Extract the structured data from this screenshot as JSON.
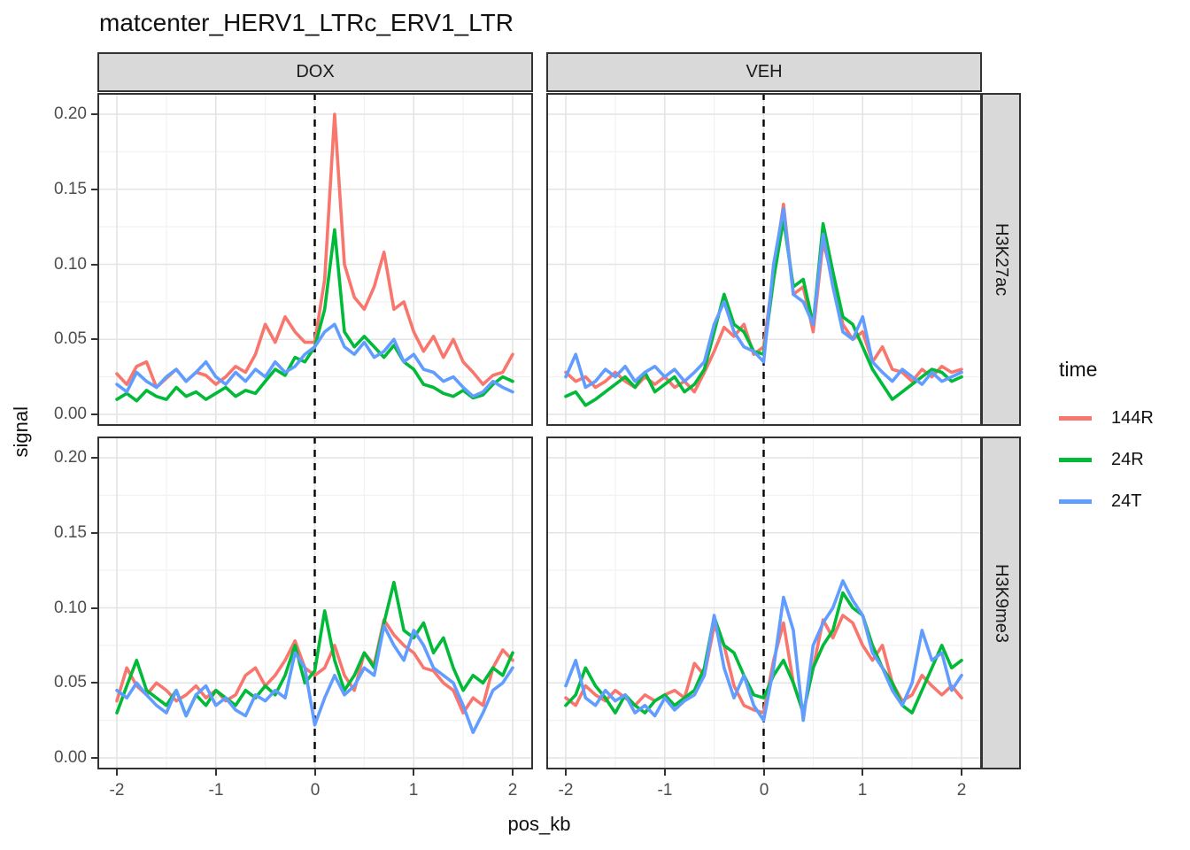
{
  "chart_data": {
    "type": "line",
    "title": "matcenter_HERV1_LTRc_ERV1_LTR",
    "xlabel": "pos_kb",
    "ylabel": "signal",
    "legend_title": "time",
    "legend_position": "right",
    "grid": "on",
    "facet_cols": [
      "DOX",
      "VEH"
    ],
    "facet_rows": [
      "H3K27ac",
      "H3K9me3"
    ],
    "x": {
      "start": -2,
      "step": 0.1,
      "end": 2
    },
    "xlim": [
      -2.2,
      2.2
    ],
    "ylim": [
      0,
      0.21
    ],
    "xticks": {
      "values": [
        -2,
        -1,
        0,
        1,
        2
      ],
      "labels": [
        "-2",
        "-1",
        "0",
        "1",
        "2"
      ]
    },
    "yticks": {
      "values": [
        0,
        0.05,
        0.1,
        0.15,
        0.2
      ],
      "labels": [
        "0.00",
        "0.05",
        "0.10",
        "0.15",
        "0.20"
      ]
    },
    "vline_x": 0,
    "series": [
      {
        "name": "144R",
        "color": "#F8766D"
      },
      {
        "name": "24R",
        "color": "#00BA38"
      },
      {
        "name": "24T",
        "color": "#619CFF"
      }
    ],
    "panels": [
      {
        "col": "DOX",
        "row": "H3K27ac",
        "values": {
          "144R": [
            0.027,
            0.02,
            0.032,
            0.035,
            0.018,
            0.024,
            0.03,
            0.022,
            0.028,
            0.026,
            0.02,
            0.025,
            0.032,
            0.028,
            0.04,
            0.06,
            0.048,
            0.065,
            0.055,
            0.048,
            0.048,
            0.09,
            0.2,
            0.1,
            0.078,
            0.07,
            0.085,
            0.108,
            0.07,
            0.075,
            0.055,
            0.042,
            0.052,
            0.038,
            0.05,
            0.035,
            0.028,
            0.02,
            0.026,
            0.028,
            0.04
          ],
          "24R": [
            0.01,
            0.014,
            0.009,
            0.016,
            0.012,
            0.01,
            0.018,
            0.012,
            0.015,
            0.01,
            0.014,
            0.018,
            0.012,
            0.016,
            0.014,
            0.022,
            0.03,
            0.026,
            0.038,
            0.035,
            0.045,
            0.07,
            0.123,
            0.055,
            0.045,
            0.052,
            0.045,
            0.038,
            0.046,
            0.035,
            0.03,
            0.02,
            0.018,
            0.014,
            0.012,
            0.016,
            0.011,
            0.013,
            0.02,
            0.025,
            0.022
          ],
          "24T": [
            0.02,
            0.015,
            0.028,
            0.022,
            0.018,
            0.025,
            0.03,
            0.022,
            0.028,
            0.035,
            0.025,
            0.02,
            0.028,
            0.022,
            0.03,
            0.025,
            0.035,
            0.028,
            0.032,
            0.04,
            0.045,
            0.055,
            0.06,
            0.045,
            0.04,
            0.048,
            0.038,
            0.042,
            0.05,
            0.035,
            0.04,
            0.03,
            0.028,
            0.022,
            0.025,
            0.018,
            0.012,
            0.015,
            0.022,
            0.018,
            0.015
          ]
        }
      },
      {
        "col": "VEH",
        "row": "H3K27ac",
        "values": {
          "144R": [
            0.028,
            0.022,
            0.025,
            0.018,
            0.022,
            0.028,
            0.022,
            0.018,
            0.025,
            0.02,
            0.025,
            0.018,
            0.022,
            0.015,
            0.028,
            0.042,
            0.058,
            0.052,
            0.06,
            0.04,
            0.045,
            0.095,
            0.14,
            0.08,
            0.085,
            0.055,
            0.115,
            0.09,
            0.06,
            0.05,
            0.055,
            0.035,
            0.045,
            0.03,
            0.028,
            0.022,
            0.03,
            0.025,
            0.032,
            0.028,
            0.03
          ],
          "24R": [
            0.012,
            0.015,
            0.006,
            0.01,
            0.015,
            0.02,
            0.025,
            0.018,
            0.028,
            0.015,
            0.02,
            0.025,
            0.015,
            0.02,
            0.03,
            0.055,
            0.08,
            0.06,
            0.055,
            0.042,
            0.04,
            0.09,
            0.13,
            0.085,
            0.09,
            0.06,
            0.127,
            0.095,
            0.065,
            0.06,
            0.045,
            0.03,
            0.02,
            0.01,
            0.015,
            0.02,
            0.025,
            0.03,
            0.028,
            0.022,
            0.025
          ],
          "24T": [
            0.025,
            0.04,
            0.018,
            0.022,
            0.03,
            0.025,
            0.032,
            0.022,
            0.028,
            0.032,
            0.025,
            0.03,
            0.022,
            0.028,
            0.035,
            0.06,
            0.075,
            0.055,
            0.045,
            0.042,
            0.035,
            0.1,
            0.137,
            0.08,
            0.075,
            0.06,
            0.12,
            0.085,
            0.055,
            0.05,
            0.065,
            0.035,
            0.028,
            0.022,
            0.03,
            0.025,
            0.02,
            0.028,
            0.022,
            0.025,
            0.028
          ]
        }
      },
      {
        "col": "DOX",
        "row": "H3K9me3",
        "values": {
          "144R": [
            0.038,
            0.06,
            0.048,
            0.042,
            0.05,
            0.045,
            0.038,
            0.042,
            0.048,
            0.04,
            0.045,
            0.038,
            0.042,
            0.055,
            0.06,
            0.048,
            0.055,
            0.065,
            0.078,
            0.06,
            0.055,
            0.06,
            0.075,
            0.055,
            0.045,
            0.07,
            0.062,
            0.092,
            0.082,
            0.075,
            0.07,
            0.06,
            0.058,
            0.05,
            0.045,
            0.03,
            0.04,
            0.035,
            0.06,
            0.072,
            0.065
          ],
          "24R": [
            0.03,
            0.048,
            0.065,
            0.045,
            0.04,
            0.035,
            0.045,
            0.028,
            0.042,
            0.035,
            0.045,
            0.04,
            0.035,
            0.045,
            0.04,
            0.048,
            0.042,
            0.055,
            0.075,
            0.05,
            0.058,
            0.098,
            0.065,
            0.045,
            0.055,
            0.07,
            0.06,
            0.09,
            0.117,
            0.085,
            0.08,
            0.09,
            0.07,
            0.08,
            0.06,
            0.045,
            0.055,
            0.05,
            0.06,
            0.055,
            0.07
          ],
          "24T": [
            0.045,
            0.04,
            0.05,
            0.042,
            0.035,
            0.03,
            0.045,
            0.028,
            0.042,
            0.048,
            0.035,
            0.04,
            0.032,
            0.028,
            0.042,
            0.038,
            0.045,
            0.04,
            0.07,
            0.06,
            0.022,
            0.04,
            0.055,
            0.042,
            0.048,
            0.06,
            0.055,
            0.088,
            0.075,
            0.065,
            0.085,
            0.075,
            0.06,
            0.055,
            0.05,
            0.035,
            0.017,
            0.03,
            0.045,
            0.05,
            0.06
          ]
        }
      },
      {
        "col": "VEH",
        "row": "H3K9me3",
        "values": {
          "144R": [
            0.04,
            0.035,
            0.048,
            0.042,
            0.038,
            0.045,
            0.04,
            0.035,
            0.042,
            0.038,
            0.042,
            0.045,
            0.04,
            0.063,
            0.055,
            0.088,
            0.075,
            0.048,
            0.035,
            0.032,
            0.03,
            0.065,
            0.09,
            0.05,
            0.03,
            0.06,
            0.092,
            0.08,
            0.095,
            0.09,
            0.075,
            0.065,
            0.075,
            0.05,
            0.038,
            0.042,
            0.055,
            0.048,
            0.042,
            0.048,
            0.04
          ],
          "24R": [
            0.035,
            0.042,
            0.06,
            0.048,
            0.04,
            0.03,
            0.042,
            0.035,
            0.03,
            0.038,
            0.042,
            0.035,
            0.04,
            0.045,
            0.06,
            0.094,
            0.075,
            0.07,
            0.055,
            0.042,
            0.04,
            0.055,
            0.065,
            0.05,
            0.03,
            0.06,
            0.075,
            0.085,
            0.11,
            0.1,
            0.095,
            0.075,
            0.06,
            0.05,
            0.035,
            0.03,
            0.045,
            0.06,
            0.075,
            0.06,
            0.065
          ],
          "24T": [
            0.048,
            0.065,
            0.04,
            0.035,
            0.045,
            0.038,
            0.042,
            0.03,
            0.035,
            0.028,
            0.04,
            0.032,
            0.038,
            0.042,
            0.055,
            0.095,
            0.06,
            0.04,
            0.055,
            0.035,
            0.025,
            0.06,
            0.107,
            0.085,
            0.025,
            0.075,
            0.09,
            0.1,
            0.118,
            0.105,
            0.095,
            0.07,
            0.06,
            0.045,
            0.035,
            0.05,
            0.085,
            0.065,
            0.07,
            0.045,
            0.055
          ]
        }
      }
    ],
    "colors": {
      "background": "#FFFFFF",
      "strip_fill": "#D9D9D9",
      "panel_border": "#333333",
      "grid_major": "#E4E4E4",
      "grid_minor": "#F2F2F2",
      "tick_label": "#4D4D4D",
      "vline": "#000000"
    }
  }
}
